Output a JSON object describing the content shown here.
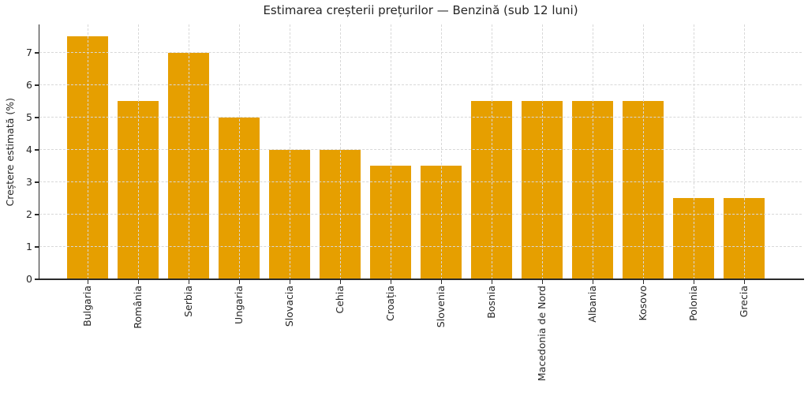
{
  "chart_data": {
    "type": "bar",
    "title": "Estimarea creșterii prețurilor — Benzină (sub 12 luni)",
    "xlabel": "",
    "ylabel": "Creștere estimată (%)",
    "categories": [
      "Bulgaria",
      "România",
      "Serbia",
      "Ungaria",
      "Slovacia",
      "Cehia",
      "Croația",
      "Slovenia",
      "Bosnia",
      "Macedonia de Nord",
      "Albania",
      "Kosovo",
      "Polonia",
      "Grecia"
    ],
    "values": [
      7.5,
      5.5,
      7.0,
      5.0,
      4.0,
      4.0,
      3.5,
      3.5,
      5.5,
      5.5,
      5.5,
      5.5,
      2.5,
      2.5
    ],
    "ylim": [
      0,
      7.875
    ],
    "yticks": [
      0,
      1,
      2,
      3,
      4,
      5,
      6,
      7
    ],
    "x_tick_rotation_deg": 90,
    "legend": null,
    "grid": "both, dashed, drawn above bars",
    "colors": {
      "bar": "#E69F00",
      "gridline": "#D8D8D8",
      "spine": "#2A2A2A",
      "text": "#262626",
      "background": "#FFFFFF"
    }
  }
}
